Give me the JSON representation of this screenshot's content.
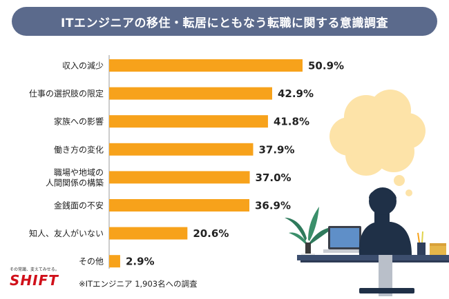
{
  "header": {
    "title": "ITエンジニアの移住・転居にともなう転職に関する意識調査"
  },
  "footer": {
    "logo_tagline": "その常識、変えてみせる。",
    "logo_word": "SHIFT",
    "note": "※ITエンジニア 1,903名への調査"
  },
  "colors": {
    "bar": "#f7a21b",
    "title_bg": "#5b6a8c",
    "brand": "#d0101a"
  },
  "chart_data": {
    "type": "bar",
    "orientation": "horizontal",
    "categories": [
      [
        "収入の減少"
      ],
      [
        "仕事の選択肢の限定"
      ],
      [
        "家族への影響"
      ],
      [
        "働き方の変化"
      ],
      [
        "職場や地域の",
        "人間関係の構築"
      ],
      [
        "金銭面の不安"
      ],
      [
        "知人、友人がいない"
      ],
      [
        "その他"
      ]
    ],
    "values": [
      50.9,
      42.9,
      41.8,
      37.9,
      37.0,
      36.9,
      20.6,
      2.9
    ],
    "value_labels": [
      "50.9%",
      "42.9%",
      "41.8%",
      "37.9%",
      "37.0%",
      "36.9%",
      "20.6%",
      "2.9%"
    ],
    "title": "ITエンジニアの移住・転居にともなう転職に関する意識調査",
    "xlabel": "",
    "ylabel": "",
    "xlim": [
      0,
      50.9
    ],
    "grid": false,
    "legend": "none"
  }
}
